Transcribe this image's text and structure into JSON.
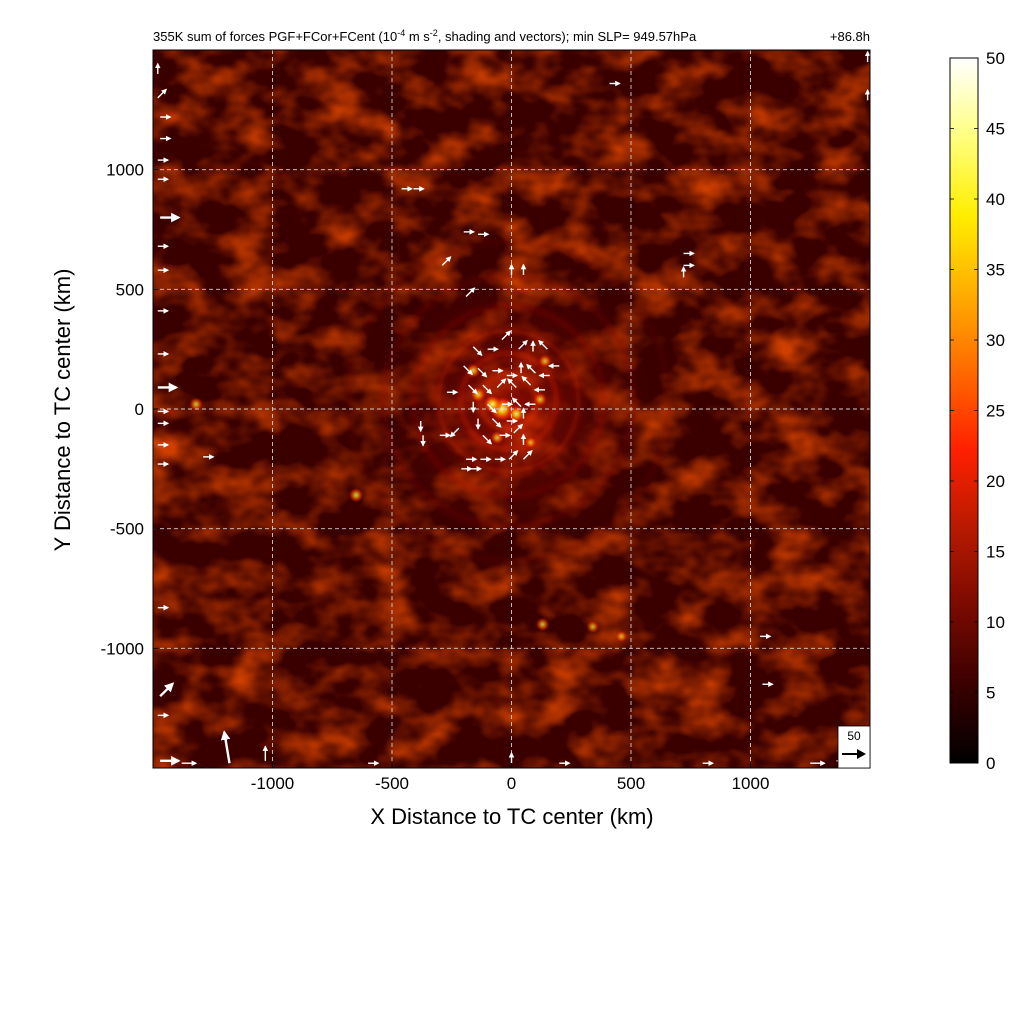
{
  "chart_data": {
    "type": "heatmap",
    "title": "355K sum of forces PGF+FCor+FCent (10",
    "title_exp1": "-4",
    "title_mid": " m s",
    "title_exp2": "-2",
    "title_end": ", shading and vectors); min SLP= 949.57hPa",
    "time_label": "+86.8h",
    "xlabel": "X Distance to TC center (km)",
    "ylabel": "Y Distance to TC center (km)",
    "xlim": [
      -1500,
      1500
    ],
    "ylim": [
      -1500,
      1500
    ],
    "x_ticks": [
      -1000,
      -500,
      0,
      500,
      1000
    ],
    "y_ticks": [
      1000,
      500,
      0,
      -500,
      -1000
    ],
    "x_tick_labels": [
      "-1000",
      "-500",
      "0",
      "500",
      "1000"
    ],
    "y_tick_labels": [
      "1000",
      "500",
      "0",
      "-500",
      "-1000"
    ],
    "grid": true,
    "colorbar": {
      "min": 0,
      "max": 50,
      "ticks": [
        0,
        5,
        10,
        15,
        20,
        25,
        30,
        35,
        40,
        45,
        50
      ],
      "tick_labels": [
        "0",
        "5",
        "10",
        "15",
        "20",
        "25",
        "30",
        "35",
        "40",
        "45",
        "50"
      ],
      "colormap": [
        "#000000",
        "#3a0000",
        "#7a0a00",
        "#b81a00",
        "#ff2000",
        "#ff6a00",
        "#ffae00",
        "#ffee00",
        "#ffff80",
        "#ffffff"
      ]
    },
    "reference_vector": {
      "value": 50,
      "label": "50"
    },
    "vectors": [
      {
        "x": -160,
        "y": 260,
        "u": 1,
        "v": -1
      },
      {
        "x": -100,
        "y": 250,
        "u": 1,
        "v": 0
      },
      {
        "x": -40,
        "y": 290,
        "u": 1,
        "v": 1
      },
      {
        "x": 30,
        "y": 250,
        "u": 1,
        "v": 1
      },
      {
        "x": 90,
        "y": 240,
        "u": 0,
        "v": 1
      },
      {
        "x": 150,
        "y": 250,
        "u": -1,
        "v": 1
      },
      {
        "x": 200,
        "y": 180,
        "u": -1,
        "v": 0
      },
      {
        "x": -200,
        "y": 180,
        "u": 1,
        "v": -1
      },
      {
        "x": -140,
        "y": 170,
        "u": 1,
        "v": -1
      },
      {
        "x": -80,
        "y": 160,
        "u": 1,
        "v": 0
      },
      {
        "x": -20,
        "y": 140,
        "u": 1,
        "v": 0
      },
      {
        "x": 40,
        "y": 150,
        "u": 0,
        "v": 1
      },
      {
        "x": 100,
        "y": 150,
        "u": -1,
        "v": 1
      },
      {
        "x": 160,
        "y": 140,
        "u": -1,
        "v": 0
      },
      {
        "x": -180,
        "y": 100,
        "u": 1,
        "v": -1
      },
      {
        "x": -120,
        "y": 100,
        "u": 1,
        "v": -1
      },
      {
        "x": -60,
        "y": 90,
        "u": 1,
        "v": 1
      },
      {
        "x": 20,
        "y": 90,
        "u": -1,
        "v": 1
      },
      {
        "x": 80,
        "y": 100,
        "u": -1,
        "v": 1
      },
      {
        "x": 140,
        "y": 80,
        "u": -1,
        "v": 0
      },
      {
        "x": -160,
        "y": 30,
        "u": 0,
        "v": -1
      },
      {
        "x": -100,
        "y": 20,
        "u": 1,
        "v": -1
      },
      {
        "x": -40,
        "y": 20,
        "u": 1,
        "v": 0
      },
      {
        "x": 40,
        "y": 10,
        "u": -1,
        "v": 1
      },
      {
        "x": 100,
        "y": 20,
        "u": -1,
        "v": 0
      },
      {
        "x": -140,
        "y": -40,
        "u": 0,
        "v": -1
      },
      {
        "x": -80,
        "y": -40,
        "u": 1,
        "v": -1
      },
      {
        "x": -20,
        "y": -50,
        "u": 1,
        "v": 0
      },
      {
        "x": 50,
        "y": -40,
        "u": 0,
        "v": 1
      },
      {
        "x": -220,
        "y": -80,
        "u": -1,
        "v": -1
      },
      {
        "x": -120,
        "y": -110,
        "u": 1,
        "v": -1
      },
      {
        "x": -50,
        "y": -110,
        "u": 1,
        "v": 0
      },
      {
        "x": 10,
        "y": -100,
        "u": 1,
        "v": 1
      },
      {
        "x": -380,
        "y": -50,
        "u": 0,
        "v": -1
      },
      {
        "x": -370,
        "y": -110,
        "u": 0,
        "v": -1
      },
      {
        "x": -300,
        "y": -110,
        "u": 1,
        "v": 0
      },
      {
        "x": -190,
        "y": -210,
        "u": 1,
        "v": 0
      },
      {
        "x": -130,
        "y": -210,
        "u": 1,
        "v": 0
      },
      {
        "x": -70,
        "y": -210,
        "u": 1,
        "v": 0
      },
      {
        "x": -10,
        "y": -210,
        "u": 1,
        "v": 1
      },
      {
        "x": 50,
        "y": -210,
        "u": 1,
        "v": 1
      },
      {
        "x": 50,
        "y": -150,
        "u": 0,
        "v": 1
      },
      {
        "x": -270,
        "y": 70,
        "u": 1,
        "v": 0
      },
      {
        "x": -170,
        "y": -250,
        "u": 1,
        "v": 0
      },
      {
        "x": -210,
        "y": -250,
        "u": 1,
        "v": 0
      },
      {
        "x": -460,
        "y": 920,
        "u": 1,
        "v": 0
      },
      {
        "x": -410,
        "y": 920,
        "u": 1,
        "v": 0
      },
      {
        "x": -200,
        "y": 740,
        "u": 1,
        "v": 0
      },
      {
        "x": -140,
        "y": 730,
        "u": 1,
        "v": 0
      },
      {
        "x": -290,
        "y": 600,
        "u": 1,
        "v": 1
      },
      {
        "x": 0,
        "y": 560,
        "u": 0,
        "v": 1
      },
      {
        "x": 50,
        "y": 560,
        "u": 0,
        "v": 1
      },
      {
        "x": -190,
        "y": 470,
        "u": 1,
        "v": 1
      },
      {
        "x": 720,
        "y": 650,
        "u": 1,
        "v": 0
      },
      {
        "x": 720,
        "y": 600,
        "u": 1,
        "v": 0
      },
      {
        "x": 720,
        "y": 550,
        "u": 0,
        "v": 1
      },
      {
        "x": 410,
        "y": 1360,
        "u": 1,
        "v": 0
      },
      {
        "x": -1290,
        "y": -200,
        "u": 1,
        "v": 0
      },
      {
        "x": -1480,
        "y": 1400,
        "u": 0,
        "v": 1
      },
      {
        "x": -1480,
        "y": 1300,
        "u": 1,
        "v": 1
      },
      {
        "x": -1470,
        "y": 1220,
        "u": 1,
        "v": 0
      },
      {
        "x": -1470,
        "y": 1130,
        "u": 1,
        "v": 0
      },
      {
        "x": -1480,
        "y": 1040,
        "u": 1,
        "v": 0
      },
      {
        "x": -1480,
        "y": 960,
        "u": 1,
        "v": 0
      },
      {
        "x": -1470,
        "y": 800,
        "u": 3,
        "v": 0
      },
      {
        "x": -1480,
        "y": 680,
        "u": 1,
        "v": 0
      },
      {
        "x": -1480,
        "y": 580,
        "u": 1,
        "v": 0
      },
      {
        "x": -1480,
        "y": 410,
        "u": 1,
        "v": 0
      },
      {
        "x": -1480,
        "y": 230,
        "u": 1,
        "v": 0
      },
      {
        "x": -1480,
        "y": 90,
        "u": 3,
        "v": 0
      },
      {
        "x": -1480,
        "y": -10,
        "u": 1,
        "v": 0
      },
      {
        "x": -1480,
        "y": -60,
        "u": 1,
        "v": 0
      },
      {
        "x": -1480,
        "y": -150,
        "u": 1,
        "v": 0
      },
      {
        "x": -1480,
        "y": -230,
        "u": 1,
        "v": 0
      },
      {
        "x": -1480,
        "y": -830,
        "u": 1,
        "v": 0
      },
      {
        "x": -1470,
        "y": -1200,
        "u": 2,
        "v": 2
      },
      {
        "x": -1480,
        "y": -1280,
        "u": 1,
        "v": 0
      },
      {
        "x": -1470,
        "y": -1470,
        "u": 3,
        "v": 0
      },
      {
        "x": -1380,
        "y": -1480,
        "u": 2,
        "v": 0
      },
      {
        "x": -1180,
        "y": -1480,
        "u": -1,
        "v": 6
      },
      {
        "x": -1030,
        "y": -1470,
        "u": 0,
        "v": 2
      },
      {
        "x": -600,
        "y": -1480,
        "u": 1,
        "v": 0
      },
      {
        "x": 0,
        "y": -1480,
        "u": 0,
        "v": 1
      },
      {
        "x": 200,
        "y": -1480,
        "u": 1,
        "v": 0
      },
      {
        "x": 800,
        "y": -1480,
        "u": 1,
        "v": 0
      },
      {
        "x": 1250,
        "y": -1480,
        "u": 2,
        "v": 0
      },
      {
        "x": 1360,
        "y": -1470,
        "u": 1,
        "v": 0
      },
      {
        "x": 1050,
        "y": -1150,
        "u": 1,
        "v": 0
      },
      {
        "x": 1040,
        "y": -950,
        "u": 1,
        "v": 0
      },
      {
        "x": 1490,
        "y": 1450,
        "u": 0,
        "v": 1
      },
      {
        "x": 1490,
        "y": 1290,
        "u": 0,
        "v": 1
      }
    ],
    "hotspots": [
      {
        "x": -40,
        "y": 0,
        "value": 45
      },
      {
        "x": -80,
        "y": 20,
        "value": 30
      },
      {
        "x": 20,
        "y": -20,
        "value": 28
      },
      {
        "x": -140,
        "y": 60,
        "value": 22
      },
      {
        "x": 120,
        "y": 40,
        "value": 18
      },
      {
        "x": -160,
        "y": 160,
        "value": 20
      },
      {
        "x": 140,
        "y": 200,
        "value": 18
      },
      {
        "x": -60,
        "y": -120,
        "value": 18
      },
      {
        "x": 80,
        "y": -140,
        "value": 15
      },
      {
        "x": -650,
        "y": -360,
        "value": 20
      },
      {
        "x": -1320,
        "y": 20,
        "value": 18
      },
      {
        "x": 130,
        "y": -900,
        "value": 18
      },
      {
        "x": 340,
        "y": -910,
        "value": 16
      },
      {
        "x": 460,
        "y": -950,
        "value": 14
      }
    ]
  }
}
